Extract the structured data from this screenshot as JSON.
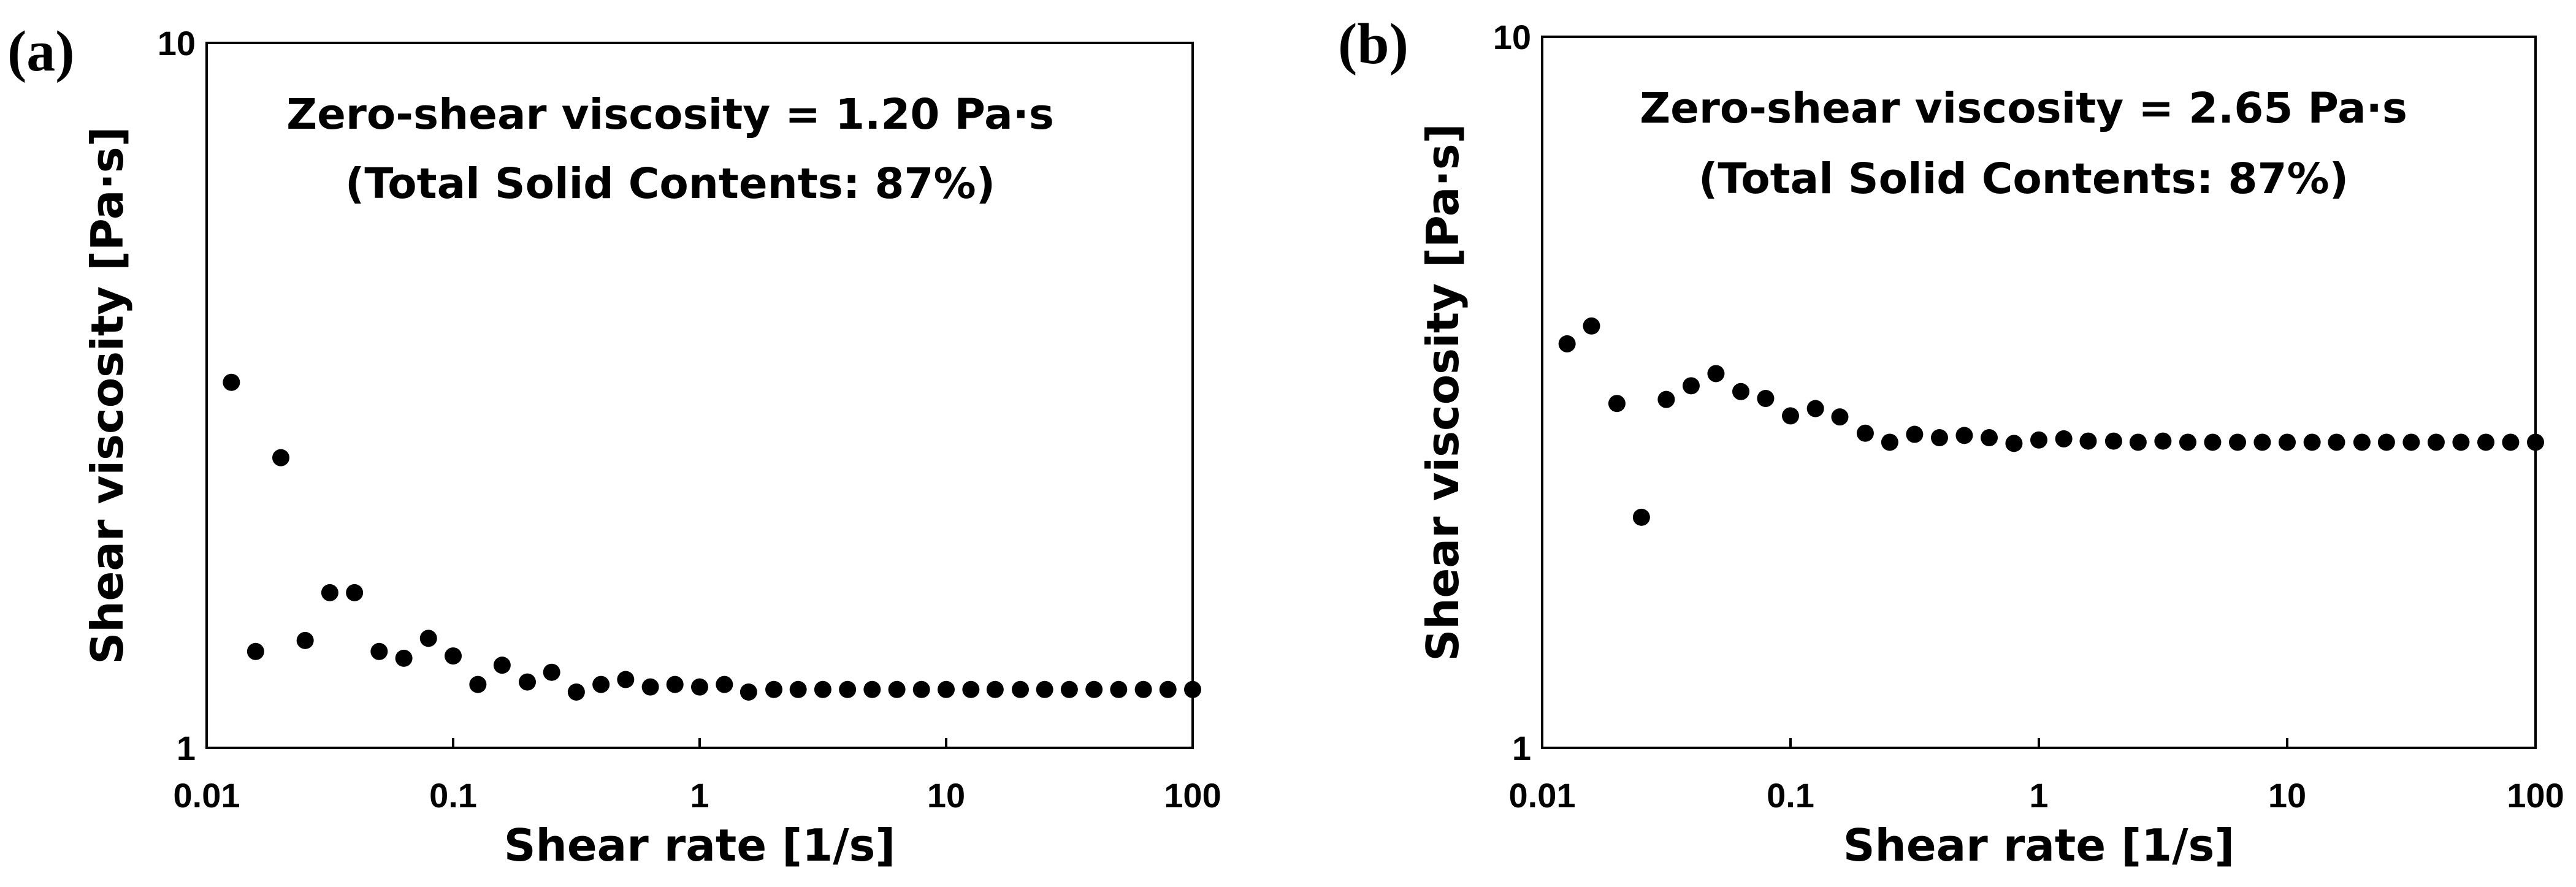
{
  "chart_data": [
    {
      "type": "scatter",
      "panel_label": "(a)",
      "title": "",
      "xlabel": "Shear rate [1/s]",
      "ylabel": "Shear viscosity [Pa·s]",
      "xscale": "log",
      "yscale": "log",
      "xlim": [
        0.01,
        100
      ],
      "ylim": [
        1,
        10
      ],
      "xticks": [
        "0.01",
        "0.1",
        "1",
        "10",
        "100"
      ],
      "yticks": [
        "1",
        "10"
      ],
      "annotations": [
        "Zero-shear viscosity = 1.20 Pa·s",
        "(Total Solid Contents: 87%)"
      ],
      "legend": "none",
      "grid": false,
      "series": [
        {
          "name": "viscosity",
          "x": [
            0.0126,
            0.0158,
            0.02,
            0.0251,
            0.0316,
            0.0398,
            0.0501,
            0.0631,
            0.0794,
            0.1,
            0.126,
            0.158,
            0.2,
            0.251,
            0.316,
            0.398,
            0.501,
            0.631,
            0.794,
            1.0,
            1.26,
            1.58,
            2.0,
            2.51,
            3.16,
            3.98,
            5.01,
            6.31,
            7.94,
            10.0,
            12.6,
            15.8,
            20.0,
            25.1,
            31.6,
            39.8,
            50.1,
            63.1,
            79.4,
            100.0
          ],
          "y": [
            3.3,
            1.37,
            2.58,
            1.42,
            1.66,
            1.66,
            1.37,
            1.34,
            1.43,
            1.35,
            1.23,
            1.31,
            1.24,
            1.28,
            1.2,
            1.23,
            1.25,
            1.22,
            1.23,
            1.22,
            1.23,
            1.2,
            1.21,
            1.21,
            1.21,
            1.21,
            1.21,
            1.21,
            1.21,
            1.21,
            1.21,
            1.21,
            1.21,
            1.21,
            1.21,
            1.21,
            1.21,
            1.21,
            1.21,
            1.21
          ]
        }
      ]
    },
    {
      "type": "scatter",
      "panel_label": "(b)",
      "title": "",
      "xlabel": "Shear rate [1/s]",
      "ylabel": "Shear viscosity [Pa·s]",
      "xscale": "log",
      "yscale": "log",
      "xlim": [
        0.01,
        100
      ],
      "ylim": [
        1,
        10
      ],
      "xticks": [
        "0.01",
        "0.1",
        "1",
        "10",
        "100"
      ],
      "yticks": [
        "1",
        "10"
      ],
      "annotations": [
        "Zero-shear viscosity = 2.65 Pa·s",
        "(Total Solid Contents: 87%)"
      ],
      "legend": "none",
      "grid": false,
      "series": [
        {
          "name": "viscosity",
          "x": [
            0.0126,
            0.0158,
            0.02,
            0.0251,
            0.0316,
            0.0398,
            0.0501,
            0.0631,
            0.0794,
            0.1,
            0.126,
            0.158,
            0.2,
            0.251,
            0.316,
            0.398,
            0.501,
            0.631,
            0.794,
            1.0,
            1.26,
            1.58,
            2.0,
            2.51,
            3.16,
            3.98,
            5.01,
            6.31,
            7.94,
            10.0,
            12.6,
            15.8,
            20.0,
            25.1,
            31.6,
            39.8,
            50.1,
            63.1,
            79.4,
            100.0
          ],
          "y": [
            3.7,
            3.92,
            3.05,
            2.11,
            3.09,
            3.23,
            3.36,
            3.17,
            3.1,
            2.93,
            3.0,
            2.92,
            2.77,
            2.69,
            2.76,
            2.73,
            2.75,
            2.73,
            2.68,
            2.71,
            2.72,
            2.7,
            2.7,
            2.69,
            2.7,
            2.69,
            2.69,
            2.69,
            2.69,
            2.69,
            2.69,
            2.69,
            2.69,
            2.69,
            2.69,
            2.69,
            2.69,
            2.69,
            2.69,
            2.69
          ]
        }
      ]
    }
  ]
}
